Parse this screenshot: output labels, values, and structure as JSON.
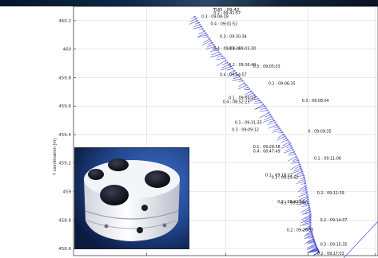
{
  "chart_data": {
    "type": "line",
    "title": "TUD : 09:42",
    "ylabel": "Y coordination [m]",
    "xlabel": "",
    "ylim": [
      458.55,
      460.3
    ],
    "yticks": [
      460.2,
      460,
      459.8,
      459.6,
      459.4,
      459.2,
      459,
      458.8,
      458.6
    ],
    "ytick_labels": [
      "460.2",
      "460",
      "459.8",
      "459.6",
      "459.4",
      "459.2",
      "459",
      "458.8",
      "458.6"
    ],
    "xlim": [
      0,
      1
    ],
    "xticks": [
      0.24,
      0.5,
      0.77,
      0.99
    ],
    "grid": true,
    "series": [
      {
        "color": "#3a3fd0",
        "style": "vector-arrows",
        "track_x": [
          0.4,
          0.44,
          0.48,
          0.53,
          0.58,
          0.63,
          0.67,
          0.71,
          0.74,
          0.76,
          0.77,
          0.78,
          0.78,
          0.79,
          0.8,
          0.81
        ],
        "track_y": [
          460.23,
          460.1,
          459.98,
          459.85,
          459.72,
          459.6,
          459.47,
          459.35,
          459.22,
          459.1,
          458.97,
          458.85,
          458.75,
          458.67,
          458.61,
          458.57
        ]
      }
    ],
    "annotations": [
      {
        "text": "0.2 : 09:41:57",
        "x": 0.46,
        "y": 460.245
      },
      {
        "text": "0.3 : 09:08:19",
        "x": 0.42,
        "y": 460.22
      },
      {
        "text": "0.4 : 09:01:52",
        "x": 0.45,
        "y": 460.17
      },
      {
        "text": "0.3 : 09:30:34",
        "x": 0.48,
        "y": 460.08
      },
      {
        "text": "0.4 : 09:39:26",
        "x": 0.46,
        "y": 459.995
      },
      {
        "text": "0.3 : 09:03:30",
        "x": 0.51,
        "y": 459.995
      },
      {
        "text": "0.2 : 09:36:49",
        "x": 0.51,
        "y": 459.88
      },
      {
        "text": "0.5 : 09:05:03",
        "x": 0.59,
        "y": 459.87
      },
      {
        "text": "0.4 : 09:54:57",
        "x": 0.48,
        "y": 459.81
      },
      {
        "text": "0.2 : 09:06:35",
        "x": 0.64,
        "y": 459.75
      },
      {
        "text": "0.1 : 09:34:22",
        "x": 0.51,
        "y": 459.65
      },
      {
        "text": "0.4 : 08:52:25",
        "x": 0.49,
        "y": 459.62
      },
      {
        "text": "0.3 : 09:08:04",
        "x": 0.75,
        "y": 459.63
      },
      {
        "text": "0.1 : 09:31:35",
        "x": 0.53,
        "y": 459.475
      },
      {
        "text": "0.3 : 09:09:12",
        "x": 0.52,
        "y": 459.425
      },
      {
        "text": "0 : 09:09:35",
        "x": 0.77,
        "y": 459.415
      },
      {
        "text": "0.1 : 09:28:58",
        "x": 0.59,
        "y": 459.305
      },
      {
        "text": "0.4 : 08:47:49",
        "x": 0.59,
        "y": 459.275
      },
      {
        "text": "0.1 : 09:11:06",
        "x": 0.79,
        "y": 459.225
      },
      {
        "text": "0.1 : 09:18:21",
        "x": 0.63,
        "y": 459.105
      },
      {
        "text": "0.3 : 09:25:52",
        "x": 0.65,
        "y": 459.09
      },
      {
        "text": "0.2 : 09:12:39",
        "x": 0.8,
        "y": 458.98
      },
      {
        "text": "0.2 : 08:42:56",
        "x": 0.67,
        "y": 458.92
      },
      {
        "text": "0.5 : 09:23:00",
        "x": 0.68,
        "y": 458.91
      },
      {
        "text": "0.2 : 09:14:07",
        "x": 0.81,
        "y": 458.79
      },
      {
        "text": "0.2 : 09:20:37",
        "x": 0.7,
        "y": 458.72
      },
      {
        "text": "0.3 : 09:15:35",
        "x": 0.81,
        "y": 458.62
      },
      {
        "text": "0.2 : 09:17:03",
        "x": 0.8,
        "y": 458.555
      }
    ]
  }
}
